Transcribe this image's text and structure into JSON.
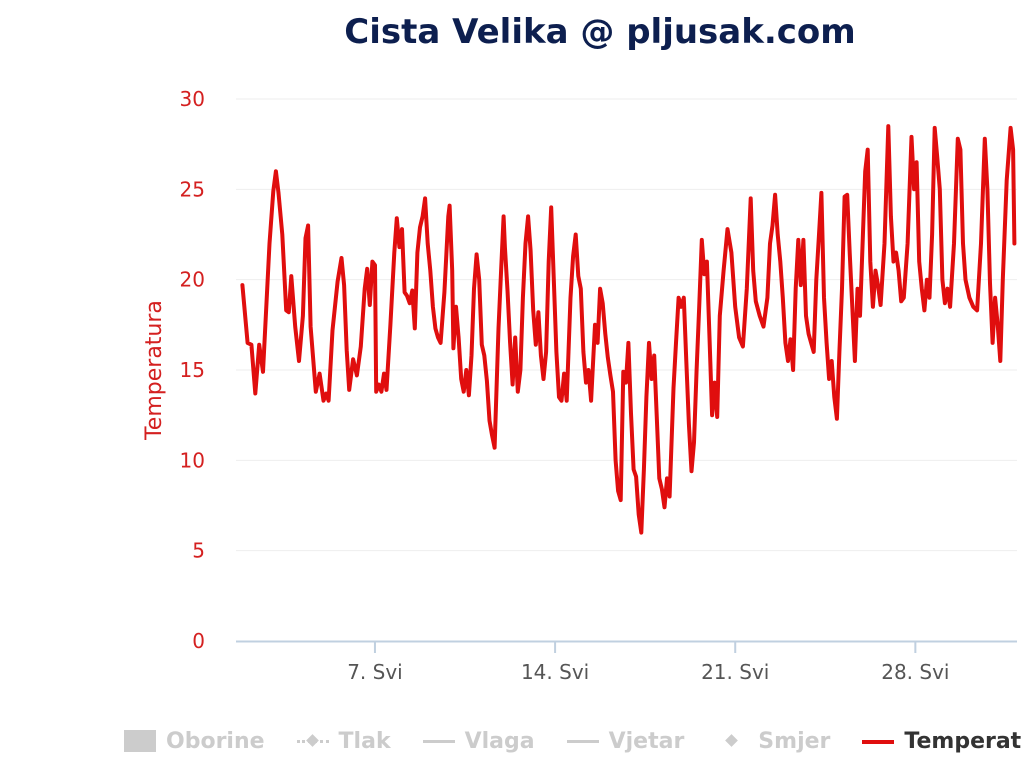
{
  "title": "Cista Velika @ pljusak.com",
  "colors": {
    "title": "#0d1f4f",
    "series": "#e00e0e",
    "axis_label": "#d42020",
    "grid": "#eeeeee",
    "axis": "#c0d0e0",
    "legend_inactive": "#cccccc"
  },
  "legend": [
    {
      "label": "Oborine",
      "symbol": "rect-icon",
      "active": false
    },
    {
      "label": "Tlak",
      "symbol": "dashed-diamond-icon",
      "active": false
    },
    {
      "label": "Vlaga",
      "symbol": "line-icon",
      "active": false
    },
    {
      "label": "Vjetar",
      "symbol": "line-icon",
      "active": false
    },
    {
      "label": "Smjer",
      "symbol": "diamond-icon",
      "active": false
    },
    {
      "label": "Temperat",
      "symbol": "red-line-icon",
      "active": true
    }
  ],
  "chart_data": {
    "type": "line",
    "title": "Cista Velika @ pljusak.com",
    "ylabel": "Temperatura",
    "xlabel": "",
    "ylim": [
      0,
      30
    ],
    "yticks": [
      0,
      5,
      10,
      15,
      20,
      25,
      30
    ],
    "xlim_day": [
      1.6,
      31.95
    ],
    "xticks": [
      {
        "day": 7,
        "label": "7. Svi"
      },
      {
        "day": 14,
        "label": "14. Svi"
      },
      {
        "day": 21,
        "label": "21. Svi"
      },
      {
        "day": 28,
        "label": "28. Svi"
      }
    ],
    "grid": true,
    "series": [
      {
        "name": "Temperat",
        "x_unit": "day of month",
        "points": [
          [
            1.85,
            19.7
          ],
          [
            2.05,
            16.5
          ],
          [
            2.2,
            16.4
          ],
          [
            2.35,
            13.7
          ],
          [
            2.5,
            16.4
          ],
          [
            2.65,
            14.9
          ],
          [
            2.9,
            22
          ],
          [
            3.05,
            24.9
          ],
          [
            3.15,
            26
          ],
          [
            3.25,
            24.8
          ],
          [
            3.4,
            22.5
          ],
          [
            3.55,
            18.3
          ],
          [
            3.65,
            18.2
          ],
          [
            3.75,
            20.2
          ],
          [
            3.9,
            17.4
          ],
          [
            4.05,
            15.5
          ],
          [
            4.2,
            18
          ],
          [
            4.3,
            22.3
          ],
          [
            4.4,
            23
          ],
          [
            4.5,
            17.4
          ],
          [
            4.7,
            13.8
          ],
          [
            4.85,
            14.8
          ],
          [
            5.0,
            13.3
          ],
          [
            5.1,
            13.7
          ],
          [
            5.2,
            13.3
          ],
          [
            5.35,
            17.2
          ],
          [
            5.55,
            19.9
          ],
          [
            5.7,
            21.2
          ],
          [
            5.8,
            19.7
          ],
          [
            5.9,
            16.1
          ],
          [
            6.0,
            13.9
          ],
          [
            6.15,
            15.6
          ],
          [
            6.3,
            14.7
          ],
          [
            6.45,
            16.3
          ],
          [
            6.6,
            19.5
          ],
          [
            6.7,
            20.6
          ],
          [
            6.8,
            18.6
          ],
          [
            6.9,
            21
          ],
          [
            7.0,
            20.8
          ],
          [
            7.05,
            13.8
          ],
          [
            7.15,
            14.2
          ],
          [
            7.25,
            13.8
          ],
          [
            7.35,
            14.8
          ],
          [
            7.45,
            13.9
          ],
          [
            7.6,
            17.5
          ],
          [
            7.75,
            21.5
          ],
          [
            7.85,
            23.4
          ],
          [
            7.95,
            21.8
          ],
          [
            8.05,
            22.8
          ],
          [
            8.15,
            19.3
          ],
          [
            8.25,
            19.1
          ],
          [
            8.35,
            18.7
          ],
          [
            8.45,
            19.4
          ],
          [
            8.55,
            17.3
          ],
          [
            8.65,
            21.5
          ],
          [
            8.75,
            22.9
          ],
          [
            8.85,
            23.5
          ],
          [
            8.95,
            24.5
          ],
          [
            9.05,
            22
          ],
          [
            9.15,
            20.5
          ],
          [
            9.25,
            18.5
          ],
          [
            9.35,
            17.3
          ],
          [
            9.45,
            16.8
          ],
          [
            9.55,
            16.5
          ],
          [
            9.7,
            19.3
          ],
          [
            9.85,
            23.5
          ],
          [
            9.9,
            24.1
          ],
          [
            10.0,
            20.5
          ],
          [
            10.05,
            16.2
          ],
          [
            10.15,
            18.5
          ],
          [
            10.25,
            16.8
          ],
          [
            10.35,
            14.5
          ],
          [
            10.45,
            13.8
          ],
          [
            10.55,
            15
          ],
          [
            10.65,
            13.6
          ],
          [
            10.75,
            15.8
          ],
          [
            10.85,
            19.5
          ],
          [
            10.95,
            21.4
          ],
          [
            11.05,
            20
          ],
          [
            11.15,
            16.4
          ],
          [
            11.25,
            15.8
          ],
          [
            11.35,
            14.4
          ],
          [
            11.45,
            12.2
          ],
          [
            11.55,
            11.4
          ],
          [
            11.65,
            10.7
          ],
          [
            11.8,
            17.3
          ],
          [
            11.9,
            20.5
          ],
          [
            12.0,
            23.5
          ],
          [
            12.05,
            21.8
          ],
          [
            12.15,
            19.4
          ],
          [
            12.25,
            16.5
          ],
          [
            12.35,
            14.2
          ],
          [
            12.45,
            16.8
          ],
          [
            12.55,
            13.8
          ],
          [
            12.65,
            15
          ],
          [
            12.75,
            19
          ],
          [
            12.85,
            22
          ],
          [
            12.95,
            23.5
          ],
          [
            13.05,
            21.6
          ],
          [
            13.15,
            18.3
          ],
          [
            13.25,
            16.4
          ],
          [
            13.35,
            18.2
          ],
          [
            13.45,
            15.8
          ],
          [
            13.55,
            14.5
          ],
          [
            13.65,
            16
          ],
          [
            13.75,
            21
          ],
          [
            13.85,
            24
          ],
          [
            13.95,
            20
          ],
          [
            14.05,
            16
          ],
          [
            14.15,
            13.5
          ],
          [
            14.25,
            13.3
          ],
          [
            14.35,
            14.8
          ],
          [
            14.45,
            13.3
          ],
          [
            14.6,
            19
          ],
          [
            14.7,
            21.3
          ],
          [
            14.8,
            22.5
          ],
          [
            14.9,
            20.2
          ],
          [
            15.0,
            19.5
          ],
          [
            15.1,
            16
          ],
          [
            15.2,
            14.3
          ],
          [
            15.3,
            15
          ],
          [
            15.4,
            13.3
          ],
          [
            15.55,
            17.5
          ],
          [
            15.65,
            16.5
          ],
          [
            15.75,
            19.5
          ],
          [
            15.85,
            18.7
          ],
          [
            15.95,
            17
          ],
          [
            16.05,
            15.7
          ],
          [
            16.15,
            14.7
          ],
          [
            16.25,
            13.8
          ],
          [
            16.35,
            10
          ],
          [
            16.45,
            8.3
          ],
          [
            16.55,
            7.8
          ],
          [
            16.65,
            14.9
          ],
          [
            16.75,
            14.3
          ],
          [
            16.85,
            16.5
          ],
          [
            16.95,
            12.6
          ],
          [
            17.05,
            9.5
          ],
          [
            17.15,
            9.1
          ],
          [
            17.25,
            7
          ],
          [
            17.35,
            6
          ],
          [
            17.45,
            9.5
          ],
          [
            17.55,
            13.5
          ],
          [
            17.65,
            16.5
          ],
          [
            17.75,
            14.5
          ],
          [
            17.85,
            15.8
          ],
          [
            17.95,
            12.5
          ],
          [
            18.05,
            9
          ],
          [
            18.15,
            8.4
          ],
          [
            18.25,
            7.4
          ],
          [
            18.35,
            9
          ],
          [
            18.45,
            8
          ],
          [
            18.6,
            14
          ],
          [
            18.7,
            16.5
          ],
          [
            18.8,
            19
          ],
          [
            18.9,
            18.5
          ],
          [
            19.0,
            19
          ],
          [
            19.1,
            15.5
          ],
          [
            19.2,
            12
          ],
          [
            19.3,
            9.4
          ],
          [
            19.4,
            11
          ],
          [
            19.5,
            15
          ],
          [
            19.6,
            18.5
          ],
          [
            19.7,
            22.2
          ],
          [
            19.8,
            20.3
          ],
          [
            19.9,
            21
          ],
          [
            20.0,
            16.8
          ],
          [
            20.1,
            12.5
          ],
          [
            20.2,
            14.3
          ],
          [
            20.3,
            12.4
          ],
          [
            20.4,
            18
          ],
          [
            20.55,
            20.5
          ],
          [
            20.7,
            22.8
          ],
          [
            20.85,
            21.5
          ],
          [
            21.0,
            18.5
          ],
          [
            21.15,
            16.8
          ],
          [
            21.3,
            16.3
          ],
          [
            21.45,
            19.5
          ],
          [
            21.6,
            24.5
          ],
          [
            21.7,
            20.5
          ],
          [
            21.8,
            18.8
          ],
          [
            21.95,
            18
          ],
          [
            22.1,
            17.4
          ],
          [
            22.25,
            19
          ],
          [
            22.35,
            22
          ],
          [
            22.45,
            23
          ],
          [
            22.55,
            24.7
          ],
          [
            22.65,
            22.5
          ],
          [
            22.75,
            21
          ],
          [
            22.85,
            19
          ],
          [
            22.95,
            16.5
          ],
          [
            23.05,
            15.5
          ],
          [
            23.15,
            16.7
          ],
          [
            23.25,
            15
          ],
          [
            23.35,
            19.5
          ],
          [
            23.45,
            22.2
          ],
          [
            23.55,
            19.7
          ],
          [
            23.65,
            22.2
          ],
          [
            23.75,
            18
          ],
          [
            23.85,
            17
          ],
          [
            23.95,
            16.5
          ],
          [
            24.05,
            16
          ],
          [
            24.15,
            20
          ],
          [
            24.25,
            22.4
          ],
          [
            24.35,
            24.8
          ],
          [
            24.45,
            19
          ],
          [
            24.55,
            16.5
          ],
          [
            24.65,
            14.5
          ],
          [
            24.75,
            15.5
          ],
          [
            24.85,
            13.5
          ],
          [
            24.95,
            12.3
          ],
          [
            25.05,
            16
          ],
          [
            25.15,
            19.5
          ],
          [
            25.25,
            24.6
          ],
          [
            25.35,
            24.7
          ],
          [
            25.45,
            21.5
          ],
          [
            25.55,
            18.5
          ],
          [
            25.65,
            15.5
          ],
          [
            25.75,
            19.5
          ],
          [
            25.85,
            18
          ],
          [
            25.95,
            22
          ],
          [
            26.05,
            26
          ],
          [
            26.15,
            27.2
          ],
          [
            26.25,
            21
          ],
          [
            26.35,
            18.5
          ],
          [
            26.45,
            20.5
          ],
          [
            26.55,
            19.7
          ],
          [
            26.65,
            18.6
          ],
          [
            26.8,
            22
          ],
          [
            26.95,
            28.5
          ],
          [
            27.05,
            23.5
          ],
          [
            27.15,
            21
          ],
          [
            27.25,
            21.5
          ],
          [
            27.35,
            20.5
          ],
          [
            27.45,
            18.8
          ],
          [
            27.55,
            19
          ],
          [
            27.7,
            22
          ],
          [
            27.85,
            27.9
          ],
          [
            27.95,
            25
          ],
          [
            28.05,
            26.5
          ],
          [
            28.15,
            21
          ],
          [
            28.25,
            19.5
          ],
          [
            28.35,
            18.3
          ],
          [
            28.45,
            20
          ],
          [
            28.55,
            19
          ],
          [
            28.65,
            22.5
          ],
          [
            28.75,
            28.4
          ],
          [
            28.85,
            26.8
          ],
          [
            28.95,
            25
          ],
          [
            29.05,
            20
          ],
          [
            29.15,
            18.7
          ],
          [
            29.25,
            19.5
          ],
          [
            29.35,
            18.5
          ],
          [
            29.5,
            22
          ],
          [
            29.65,
            27.8
          ],
          [
            29.75,
            27.2
          ],
          [
            29.85,
            22
          ],
          [
            29.95,
            20
          ],
          [
            30.1,
            19
          ],
          [
            30.25,
            18.5
          ],
          [
            30.4,
            18.3
          ],
          [
            30.55,
            22
          ],
          [
            30.7,
            27.8
          ],
          [
            30.8,
            25
          ],
          [
            30.9,
            19.8
          ],
          [
            31.0,
            16.5
          ],
          [
            31.1,
            19
          ],
          [
            31.2,
            17.5
          ],
          [
            31.3,
            15.5
          ],
          [
            31.4,
            20
          ],
          [
            31.55,
            25.5
          ],
          [
            31.7,
            28.4
          ],
          [
            31.8,
            27.2
          ],
          [
            31.85,
            22
          ]
        ]
      }
    ]
  }
}
